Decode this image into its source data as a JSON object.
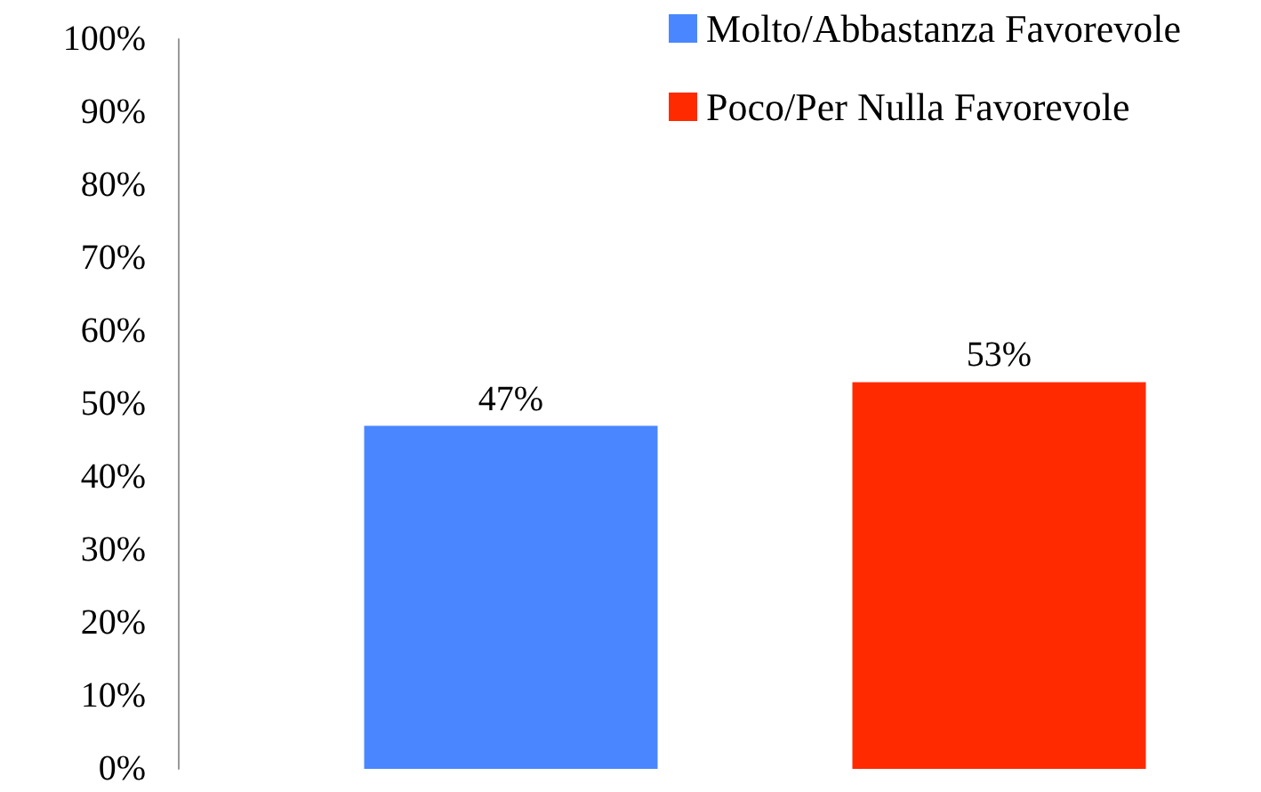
{
  "chart_data": {
    "type": "bar",
    "stacked": true,
    "categories": [
      null,
      null
    ],
    "series": [
      {
        "name": "Molto/Abbastanza Favorevole",
        "color": "#4a86ff",
        "values": [
          47,
          null
        ],
        "value_labels": [
          "47%",
          null
        ]
      },
      {
        "name": "Poco/Per Nulla Favorevole",
        "color": "#ff2a00",
        "values": [
          null,
          53
        ],
        "value_labels": [
          null,
          "53%"
        ]
      }
    ],
    "ylim": [
      0,
      100
    ],
    "yticks": [
      {
        "value": 0,
        "label": "0%"
      },
      {
        "value": 10,
        "label": "10%"
      },
      {
        "value": 20,
        "label": "20%"
      },
      {
        "value": 30,
        "label": "30%"
      },
      {
        "value": 40,
        "label": "40%"
      },
      {
        "value": 50,
        "label": "50%"
      },
      {
        "value": 60,
        "label": "60%"
      },
      {
        "value": 70,
        "label": "70%"
      },
      {
        "value": 80,
        "label": "80%"
      },
      {
        "value": 90,
        "label": "90%"
      },
      {
        "value": 100,
        "label": "100%"
      }
    ],
    "legend": "top right",
    "grid": false
  }
}
